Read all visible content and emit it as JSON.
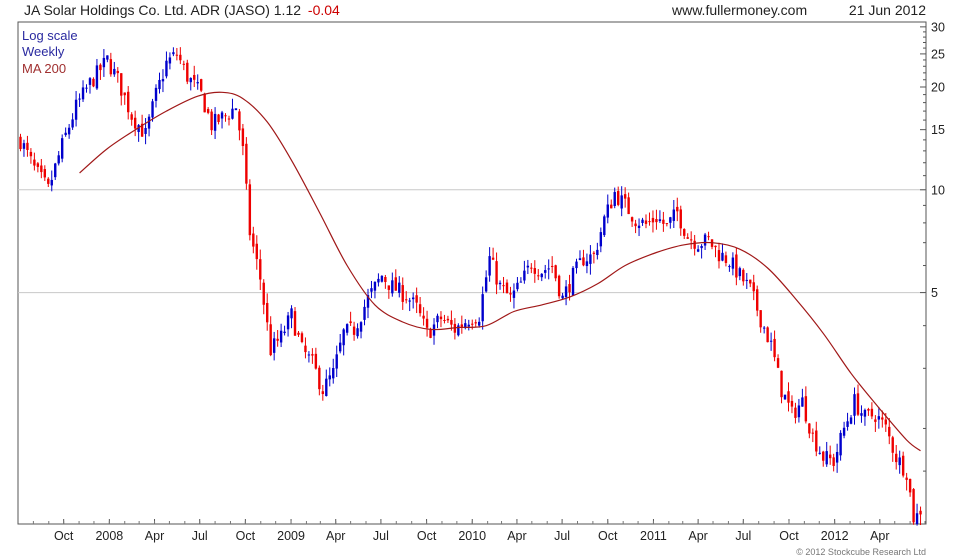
{
  "header": {
    "title": "JA Solar Holdings Co. Ltd. ADR (JASO) 1.12",
    "change": "-0.04",
    "site": "www.fullermoney.com",
    "date": "21 Jun 2012"
  },
  "legend": {
    "scale": "Log scale",
    "period": "Weekly",
    "ma": "MA 200"
  },
  "copyright": "© 2012 Stockcube Research Ltd",
  "colors": {
    "up": "#0000cc",
    "down": "#ee0000",
    "ma": "#a01818",
    "grid": "#c8c8c8",
    "legend_blue": "#2a2aa0",
    "legend_red": "#a03030"
  },
  "chart_data": {
    "type": "candlestick",
    "y_scale": "log",
    "ylim": [
      1.05,
      31
    ],
    "y_ticks": [
      30,
      25,
      20,
      15,
      10,
      5
    ],
    "y_gridlines": [
      10,
      5
    ],
    "xlim": [
      "2007-07-01",
      "2012-07-03"
    ],
    "x_ticks": [
      {
        "label": "Oct",
        "date": "2007-10-01"
      },
      {
        "label": "2008",
        "date": "2008-01-01"
      },
      {
        "label": "Apr",
        "date": "2008-04-01"
      },
      {
        "label": "Jul",
        "date": "2008-07-01"
      },
      {
        "label": "Oct",
        "date": "2008-10-01"
      },
      {
        "label": "2009",
        "date": "2009-01-01"
      },
      {
        "label": "Apr",
        "date": "2009-04-01"
      },
      {
        "label": "Jul",
        "date": "2009-07-01"
      },
      {
        "label": "Oct",
        "date": "2009-10-01"
      },
      {
        "label": "2010",
        "date": "2010-01-01"
      },
      {
        "label": "Apr",
        "date": "2010-04-01"
      },
      {
        "label": "Jul",
        "date": "2010-07-01"
      },
      {
        "label": "Oct",
        "date": "2010-10-01"
      },
      {
        "label": "2011",
        "date": "2011-01-01"
      },
      {
        "label": "Apr",
        "date": "2011-04-01"
      },
      {
        "label": "Jul",
        "date": "2011-07-01"
      },
      {
        "label": "Oct",
        "date": "2011-10-01"
      },
      {
        "label": "2012",
        "date": "2012-01-01"
      },
      {
        "label": "Apr",
        "date": "2012-04-01"
      }
    ],
    "price_path": [
      [
        "2007-07-06",
        14.0
      ],
      [
        "2007-08-03",
        11.5
      ],
      [
        "2007-08-31",
        10.0
      ],
      [
        "2007-09-28",
        13.5
      ],
      [
        "2007-10-26",
        17.5
      ],
      [
        "2007-11-23",
        20.5
      ],
      [
        "2007-12-28",
        24.0
      ],
      [
        "2008-01-18",
        21.0
      ],
      [
        "2008-02-15",
        16.5
      ],
      [
        "2008-03-14",
        14.5
      ],
      [
        "2008-04-04",
        19.0
      ],
      [
        "2008-04-25",
        23.5
      ],
      [
        "2008-05-16",
        25.0
      ],
      [
        "2008-06-06",
        21.5
      ],
      [
        "2008-07-04",
        19.0
      ],
      [
        "2008-07-25",
        15.5
      ],
      [
        "2008-08-22",
        16.5
      ],
      [
        "2008-09-12",
        17.5
      ],
      [
        "2008-09-26",
        13.0
      ],
      [
        "2008-10-10",
        7.5
      ],
      [
        "2008-10-31",
        5.5
      ],
      [
        "2008-11-21",
        3.4
      ],
      [
        "2008-12-12",
        3.7
      ],
      [
        "2009-01-02",
        4.3
      ],
      [
        "2009-01-23",
        3.4
      ],
      [
        "2009-02-13",
        3.1
      ],
      [
        "2009-03-06",
        2.6
      ],
      [
        "2009-03-27",
        2.9
      ],
      [
        "2009-04-17",
        3.8
      ],
      [
        "2009-05-08",
        3.9
      ],
      [
        "2009-06-05",
        4.8
      ],
      [
        "2009-07-03",
        5.6
      ],
      [
        "2009-07-24",
        5.2
      ],
      [
        "2009-08-21",
        4.9
      ],
      [
        "2009-09-11",
        4.5
      ],
      [
        "2009-10-02",
        3.8
      ],
      [
        "2009-10-30",
        4.2
      ],
      [
        "2009-11-27",
        3.9
      ],
      [
        "2009-12-25",
        4.2
      ],
      [
        "2010-01-15",
        4.3
      ],
      [
        "2010-02-05",
        6.3
      ],
      [
        "2010-02-26",
        5.2
      ],
      [
        "2010-03-19",
        4.8
      ],
      [
        "2010-04-09",
        5.3
      ],
      [
        "2010-04-30",
        6.1
      ],
      [
        "2010-05-21",
        5.8
      ],
      [
        "2010-06-11",
        6.0
      ],
      [
        "2010-07-02",
        4.8
      ],
      [
        "2010-07-23",
        5.6
      ],
      [
        "2010-08-13",
        6.3
      ],
      [
        "2010-09-03",
        6.4
      ],
      [
        "2010-09-24",
        8.2
      ],
      [
        "2010-10-15",
        9.8
      ],
      [
        "2010-11-05",
        9.0
      ],
      [
        "2010-11-26",
        8.2
      ],
      [
        "2010-12-17",
        7.9
      ],
      [
        "2011-01-07",
        8.3
      ],
      [
        "2011-01-28",
        7.8
      ],
      [
        "2011-02-18",
        8.6
      ],
      [
        "2011-03-11",
        7.3
      ],
      [
        "2011-04-01",
        7.0
      ],
      [
        "2011-04-22",
        7.1
      ],
      [
        "2011-05-13",
        6.5
      ],
      [
        "2011-06-03",
        6.2
      ],
      [
        "2011-06-24",
        5.6
      ],
      [
        "2011-07-15",
        5.1
      ],
      [
        "2011-08-05",
        4.2
      ],
      [
        "2011-08-26",
        3.5
      ],
      [
        "2011-09-16",
        2.6
      ],
      [
        "2011-10-07",
        2.2
      ],
      [
        "2011-10-28",
        2.4
      ],
      [
        "2011-11-18",
        1.9
      ],
      [
        "2011-12-09",
        1.65
      ],
      [
        "2011-12-30",
        1.6
      ],
      [
        "2012-01-20",
        2.0
      ],
      [
        "2012-02-10",
        2.4
      ],
      [
        "2012-03-02",
        2.15
      ],
      [
        "2012-03-23",
        2.2
      ],
      [
        "2012-04-13",
        2.0
      ],
      [
        "2012-05-04",
        1.65
      ],
      [
        "2012-05-25",
        1.5
      ],
      [
        "2012-06-08",
        1.1
      ],
      [
        "2012-06-22",
        1.12
      ]
    ],
    "ma200": [
      [
        "2007-11-02",
        11.2
      ],
      [
        "2007-12-28",
        13.2
      ],
      [
        "2008-02-29",
        15.2
      ],
      [
        "2008-04-25",
        17.0
      ],
      [
        "2008-06-27",
        18.8
      ],
      [
        "2008-08-15",
        19.3
      ],
      [
        "2008-09-26",
        18.5
      ],
      [
        "2008-11-14",
        15.8
      ],
      [
        "2009-01-02",
        12.2
      ],
      [
        "2009-02-27",
        8.6
      ],
      [
        "2009-04-24",
        6.0
      ],
      [
        "2009-06-19",
        4.6
      ],
      [
        "2009-08-14",
        4.1
      ],
      [
        "2009-10-09",
        3.9
      ],
      [
        "2009-12-04",
        3.95
      ],
      [
        "2010-01-29",
        4.0
      ],
      [
        "2010-03-26",
        4.4
      ],
      [
        "2010-05-21",
        4.6
      ],
      [
        "2010-07-16",
        4.85
      ],
      [
        "2010-09-10",
        5.3
      ],
      [
        "2010-11-05",
        6.0
      ],
      [
        "2011-01-07",
        6.55
      ],
      [
        "2011-03-04",
        6.9
      ],
      [
        "2011-04-29",
        7.0
      ],
      [
        "2011-06-24",
        6.7
      ],
      [
        "2011-08-19",
        5.9
      ],
      [
        "2011-10-14",
        4.8
      ],
      [
        "2011-12-09",
        3.8
      ],
      [
        "2012-02-03",
        2.9
      ],
      [
        "2012-03-30",
        2.3
      ],
      [
        "2012-05-25",
        1.85
      ],
      [
        "2012-06-22",
        1.72
      ]
    ]
  }
}
